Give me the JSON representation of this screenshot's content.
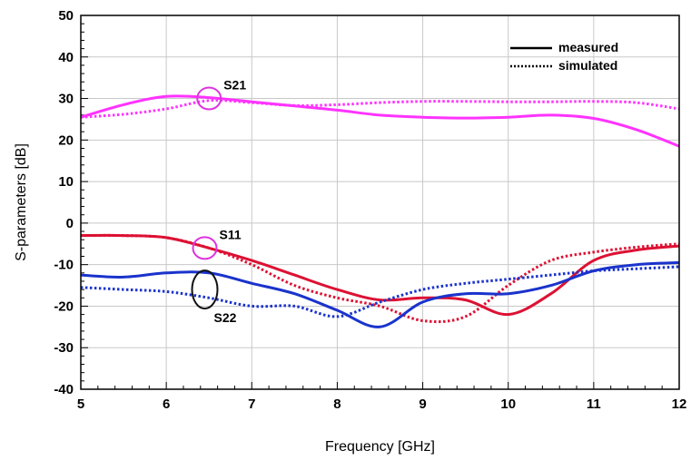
{
  "chart_data": {
    "type": "line",
    "xlabel": "Frequency [GHz]",
    "ylabel": "S-parameters [dB]",
    "xlim": [
      5,
      12
    ],
    "ylim": [
      -40,
      50
    ],
    "xticks": [
      5,
      6,
      7,
      8,
      9,
      10,
      11,
      12
    ],
    "yticks": [
      -40,
      -30,
      -20,
      -10,
      0,
      10,
      20,
      30,
      40,
      50
    ],
    "grid": true,
    "legend": {
      "position": "top-right",
      "entries": [
        {
          "label": "measured",
          "style": "solid"
        },
        {
          "label": "simulated",
          "style": "dotted"
        }
      ]
    },
    "annotations": [
      {
        "text": "S21",
        "x": 6.5,
        "y": 30
      },
      {
        "text": "S11",
        "x": 6.45,
        "y": -6
      },
      {
        "text": "S22",
        "x": 6.45,
        "y": -16
      }
    ],
    "series": [
      {
        "color": "#ff33ff",
        "style": "solid",
        "points": [
          [
            5,
            25.5
          ],
          [
            5.5,
            28.5
          ],
          [
            6,
            30.5
          ],
          [
            6.5,
            30.2
          ],
          [
            7,
            29.2
          ],
          [
            7.5,
            28.2
          ],
          [
            8,
            27.2
          ],
          [
            8.5,
            26.0
          ],
          [
            9,
            25.5
          ],
          [
            9.5,
            25.3
          ],
          [
            10,
            25.5
          ],
          [
            10.5,
            26.0
          ],
          [
            11,
            25.2
          ],
          [
            11.5,
            22.5
          ],
          [
            12,
            18.5
          ]
        ]
      },
      {
        "color": "#ff33ff",
        "style": "dotted",
        "points": [
          [
            5,
            25.5
          ],
          [
            5.5,
            26.2
          ],
          [
            6,
            27.5
          ],
          [
            6.5,
            29.5
          ],
          [
            7,
            29.0
          ],
          [
            7.5,
            28.3
          ],
          [
            8,
            28.5
          ],
          [
            8.5,
            29.0
          ],
          [
            9,
            29.3
          ],
          [
            9.5,
            29.3
          ],
          [
            10,
            29.2
          ],
          [
            10.5,
            29.2
          ],
          [
            11,
            29.3
          ],
          [
            11.5,
            29.0
          ],
          [
            12,
            27.5
          ]
        ]
      },
      {
        "color": "#dd1133",
        "style": "solid",
        "points": [
          [
            5,
            -3
          ],
          [
            5.5,
            -3
          ],
          [
            6,
            -3.5
          ],
          [
            6.5,
            -6
          ],
          [
            7,
            -9
          ],
          [
            7.5,
            -12.5
          ],
          [
            8,
            -16
          ],
          [
            8.5,
            -18.5
          ],
          [
            9,
            -18
          ],
          [
            9.5,
            -18.5
          ],
          [
            10,
            -22
          ],
          [
            10.5,
            -17
          ],
          [
            11,
            -9
          ],
          [
            11.5,
            -6.5
          ],
          [
            12,
            -5.5
          ]
        ]
      },
      {
        "color": "#dd1133",
        "style": "dotted",
        "points": [
          [
            5,
            -3
          ],
          [
            5.5,
            -3
          ],
          [
            6,
            -3.5
          ],
          [
            6.5,
            -6
          ],
          [
            7,
            -10
          ],
          [
            7.5,
            -15
          ],
          [
            8,
            -18
          ],
          [
            8.5,
            -20
          ],
          [
            9,
            -23.5
          ],
          [
            9.5,
            -22.5
          ],
          [
            10,
            -15
          ],
          [
            10.5,
            -9
          ],
          [
            11,
            -7
          ],
          [
            11.5,
            -5.8
          ],
          [
            12,
            -5
          ]
        ]
      },
      {
        "color": "#1a33cc",
        "style": "solid",
        "points": [
          [
            5,
            -12.5
          ],
          [
            5.5,
            -13
          ],
          [
            6,
            -12
          ],
          [
            6.5,
            -12
          ],
          [
            7,
            -14.5
          ],
          [
            7.5,
            -17
          ],
          [
            8,
            -21
          ],
          [
            8.5,
            -25
          ],
          [
            9,
            -19
          ],
          [
            9.5,
            -17
          ],
          [
            10,
            -17
          ],
          [
            10.5,
            -15
          ],
          [
            11,
            -11.5
          ],
          [
            11.5,
            -10
          ],
          [
            12,
            -9.5
          ]
        ]
      },
      {
        "color": "#1a33cc",
        "style": "dotted",
        "points": [
          [
            5,
            -15.5
          ],
          [
            5.5,
            -16
          ],
          [
            6,
            -16.5
          ],
          [
            6.5,
            -18
          ],
          [
            7,
            -20
          ],
          [
            7.5,
            -20
          ],
          [
            8,
            -22.5
          ],
          [
            8.5,
            -19
          ],
          [
            9,
            -16
          ],
          [
            9.5,
            -14.5
          ],
          [
            10,
            -13.5
          ],
          [
            10.5,
            -12.5
          ],
          [
            11,
            -11.5
          ],
          [
            11.5,
            -11
          ],
          [
            12,
            -10.5
          ]
        ]
      }
    ]
  }
}
